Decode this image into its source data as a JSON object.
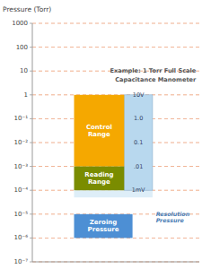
{
  "chart_data": {
    "type": "range_bar",
    "title": "Example: 1 Torr Full Scale",
    "subtitle": "Capacitance Manometer",
    "y_label": "Pressure (Torr)",
    "log": "y",
    "grid": true,
    "ylim": [
      1e-07,
      1000
    ],
    "yticks": [
      1000,
      100,
      10,
      1,
      {
        "value": 0.1,
        "label": "10⁻¹"
      },
      {
        "value": 0.01,
        "label": "10⁻²"
      },
      {
        "value": 0.001,
        "label": "10⁻³"
      },
      {
        "value": 0.0001,
        "label": "10⁻⁴"
      },
      {
        "value": 1e-05,
        "label": "10⁻⁵"
      },
      {
        "value": 1e-06,
        "label": "10⁻⁶"
      },
      {
        "value": 1e-07,
        "label": "10⁻⁷"
      }
    ],
    "shadow": {
      "low": 5.011872336272722e-05,
      "high": 0.0001,
      "color": "#deeef8"
    },
    "output_range": {
      "low": 0.0001,
      "high": 1,
      "color": "#b8d8ee",
      "labels": [
        {
          "y": 1,
          "text": "10V"
        },
        {
          "y": 0.1,
          "text": "1.0"
        },
        {
          "y": 0.01,
          "text": "0.1"
        },
        {
          "y": 0.001,
          "text": ".01"
        },
        {
          "y": 0.0001,
          "text": "1mV"
        }
      ]
    },
    "ranges": [
      {
        "label": "Control\nRange",
        "low": 0.001,
        "high": 1,
        "color": "#f5a800"
      },
      {
        "label": "Reading\nRange",
        "low": 0.0001,
        "high": 0.001,
        "color": "#7a8c00"
      },
      {
        "label": "Zeroing\nPressure",
        "low": 1e-06,
        "high": 1e-05,
        "color": "#4d8fd4"
      }
    ],
    "annotations": [
      {
        "text": "Resolution\nPressure",
        "y": 7.943282347242815e-06
      }
    ]
  }
}
